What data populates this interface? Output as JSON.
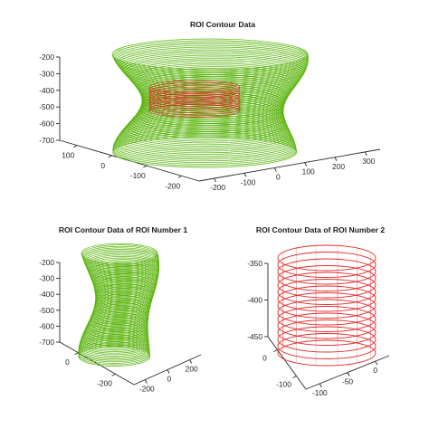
{
  "chart_data": [
    {
      "type": "line",
      "title": "ROI Contour Data",
      "xlabel": "",
      "ylabel": "",
      "zlabel": "",
      "series": [
        {
          "color": "#52b000",
          "values": [
            -700,
            -200
          ]
        },
        {
          "color": "#e02020",
          "values": [
            -450,
            -350
          ]
        }
      ],
      "x_ticks": [
        -200,
        -100,
        0,
        100,
        200,
        300
      ],
      "y_ticks": [
        -200,
        -100,
        0,
        100
      ],
      "z_ticks": [
        -700,
        -600,
        -500,
        -400,
        -300,
        -200
      ],
      "grid": false,
      "legend": false
    },
    {
      "type": "line",
      "title": "ROI Contour Data of ROI Number 1",
      "series": [
        {
          "color": "#52b000",
          "values": [
            -700,
            -200
          ]
        }
      ],
      "x_ticks": [
        -200,
        0,
        200
      ],
      "y_ticks": [
        -200,
        0
      ],
      "z_ticks": [
        -700,
        -600,
        -500,
        -400,
        -300,
        -200
      ],
      "grid": false,
      "legend": false
    },
    {
      "type": "line",
      "title": "ROI Contour Data of ROI Number 2",
      "series": [
        {
          "color": "#e02020",
          "values": [
            -450,
            -350
          ]
        }
      ],
      "x_ticks": [
        -100,
        -50,
        0
      ],
      "y_ticks": [
        -100,
        0
      ],
      "z_ticks": [
        -450,
        -400,
        -350
      ],
      "grid": false,
      "legend": false
    }
  ]
}
